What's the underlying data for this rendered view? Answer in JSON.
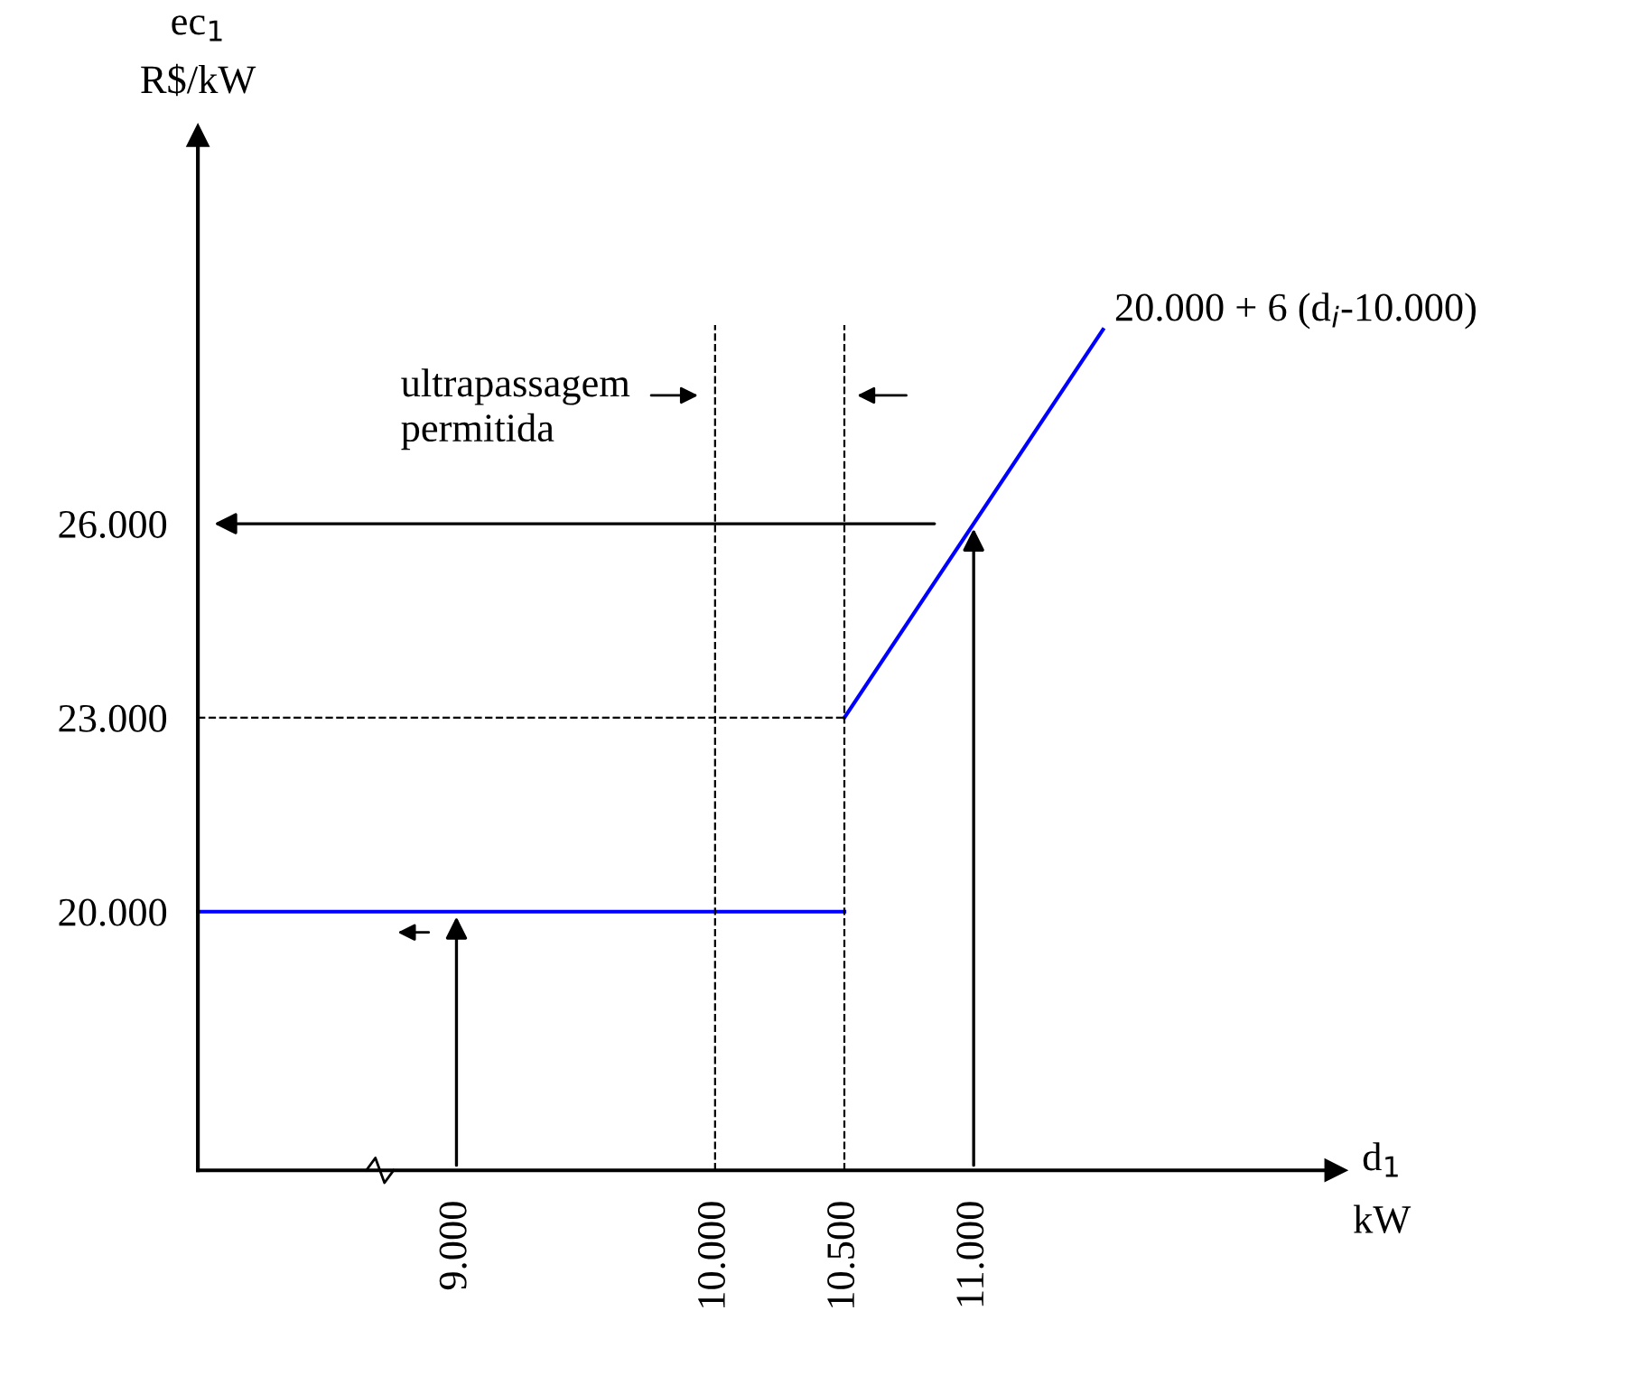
{
  "chart_data": {
    "type": "line",
    "xlabel": "d$_{1}$\nkW",
    "ylabel": "ec$_{1}$\nR$/kW",
    "xlim": [
      8000,
      12400
    ],
    "ylim": [
      16000,
      32000
    ],
    "xticks": [
      {
        "value": 9000,
        "label": "9.000"
      },
      {
        "value": 10000,
        "label": "10.000"
      },
      {
        "value": 10500,
        "label": "10.500"
      },
      {
        "value": 11000,
        "label": "11.000"
      }
    ],
    "yticks": [
      {
        "value": 20000,
        "label": "20.000"
      },
      {
        "value": 23000,
        "label": "23.000"
      },
      {
        "value": 26000,
        "label": "26.000"
      }
    ],
    "series": [
      {
        "color": "#0000ff",
        "x": [
          8000,
          10500
        ],
        "values": [
          20000,
          20000
        ]
      },
      {
        "color": "#0000ff",
        "x": [
          10500,
          11500
        ],
        "values": [
          23000,
          29000
        ]
      }
    ],
    "ref_lines": [
      {
        "axis": "y",
        "value": 23000,
        "line_style": "dashed",
        "color": "#000000"
      },
      {
        "axis": "x",
        "value": 10000,
        "line_style": "dashed",
        "color": "#000000"
      },
      {
        "axis": "x",
        "value": 10500,
        "line_style": "dashed",
        "color": "#000000"
      }
    ],
    "annotations": [
      "ultrapassagem\npermitida",
      {
        "text": "20.000 + 6 (d$_{i}$-10.000)",
        "x": 11500,
        "y": 29000
      }
    ],
    "grid": false,
    "marker": "none",
    "line_style": "solid"
  }
}
